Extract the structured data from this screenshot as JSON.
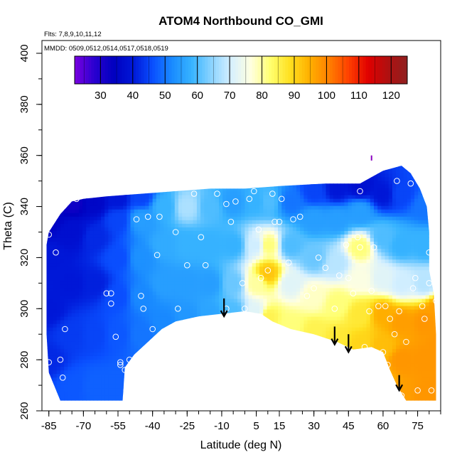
{
  "chart_data": {
    "type": "heatmap",
    "title": "ATOM4 Northbound CO_GMI",
    "flights_note": "Flts: 7,8,9,10,11,12",
    "dates_note": "MMDD: 0509,0512,0514,0517,0518,0519",
    "xlabel": "Latitude (deg N)",
    "ylabel": "Theta (C)",
    "xlim": [
      -88,
      85
    ],
    "ylim": [
      260,
      405
    ],
    "x_ticks": [
      -85,
      -70,
      -55,
      -40,
      -25,
      -10,
      5,
      15,
      30,
      45,
      60,
      75
    ],
    "y_ticks": [
      260,
      280,
      300,
      320,
      340,
      360,
      380,
      400
    ],
    "colorbar": {
      "range": [
        22,
        125
      ],
      "ticks": [
        30,
        40,
        50,
        60,
        70,
        80,
        90,
        100,
        110,
        120
      ],
      "colors": [
        "#7a00e0",
        "#2a00d0",
        "#0000c0",
        "#0018d8",
        "#0a50ff",
        "#1a8cff",
        "#38b4ff",
        "#8cd4ff",
        "#d6f0ff",
        "#ffffe0",
        "#ffff70",
        "#ffe020",
        "#ffb000",
        "#ff8000",
        "#ff4000",
        "#e00000",
        "#b01010",
        "#902020"
      ]
    },
    "top_boundary": [
      [
        -85,
        330
      ],
      [
        -80,
        337
      ],
      [
        -75,
        342
      ],
      [
        -70,
        343
      ],
      [
        -60,
        344
      ],
      [
        -45,
        345
      ],
      [
        -30,
        346
      ],
      [
        -15,
        347
      ],
      [
        0,
        347
      ],
      [
        15,
        348
      ],
      [
        35,
        349
      ],
      [
        50,
        349
      ],
      [
        60,
        354
      ],
      [
        68,
        356
      ],
      [
        72,
        353
      ],
      [
        76,
        347
      ],
      [
        79,
        340
      ],
      [
        80,
        330
      ],
      [
        80,
        315
      ],
      [
        82,
        306
      ],
      [
        83,
        290
      ]
    ],
    "bottom_boundary": [
      [
        83,
        264
      ],
      [
        78,
        264
      ],
      [
        70,
        264
      ],
      [
        66,
        270
      ],
      [
        63,
        276
      ],
      [
        60,
        283
      ],
      [
        55,
        285
      ],
      [
        47,
        284
      ],
      [
        40,
        287
      ],
      [
        30,
        290
      ],
      [
        20,
        292
      ],
      [
        12,
        295
      ],
      [
        7,
        298
      ],
      [
        0,
        299
      ],
      [
        -10,
        298
      ],
      [
        -20,
        297
      ],
      [
        -30,
        295
      ],
      [
        -36,
        292
      ],
      [
        -42,
        287
      ],
      [
        -48,
        282
      ],
      [
        -52,
        277
      ],
      [
        -53,
        264
      ],
      [
        -60,
        264
      ],
      [
        -70,
        264
      ],
      [
        -80,
        264
      ],
      [
        -85,
        275
      ],
      [
        -86,
        290
      ],
      [
        -86,
        310
      ],
      [
        -86,
        325
      ]
    ],
    "grid_points": [
      {
        "x": -85,
        "y": 280,
        "v": 42
      },
      {
        "x": -85,
        "y": 300,
        "v": 40
      },
      {
        "x": -85,
        "y": 320,
        "v": 40
      },
      {
        "x": -85,
        "y": 335,
        "v": 35
      },
      {
        "x": -75,
        "y": 270,
        "v": 47
      },
      {
        "x": -75,
        "y": 290,
        "v": 44
      },
      {
        "x": -75,
        "y": 310,
        "v": 40
      },
      {
        "x": -75,
        "y": 330,
        "v": 38
      },
      {
        "x": -75,
        "y": 342,
        "v": 32
      },
      {
        "x": -65,
        "y": 270,
        "v": 48
      },
      {
        "x": -65,
        "y": 290,
        "v": 45
      },
      {
        "x": -65,
        "y": 310,
        "v": 41
      },
      {
        "x": -65,
        "y": 328,
        "v": 42
      },
      {
        "x": -65,
        "y": 342,
        "v": 36
      },
      {
        "x": -55,
        "y": 270,
        "v": 48
      },
      {
        "x": -55,
        "y": 290,
        "v": 47
      },
      {
        "x": -55,
        "y": 305,
        "v": 46
      },
      {
        "x": -55,
        "y": 320,
        "v": 46
      },
      {
        "x": -55,
        "y": 335,
        "v": 45
      },
      {
        "x": -55,
        "y": 343,
        "v": 40
      },
      {
        "x": -45,
        "y": 290,
        "v": 50
      },
      {
        "x": -45,
        "y": 305,
        "v": 52
      },
      {
        "x": -45,
        "y": 320,
        "v": 53
      },
      {
        "x": -45,
        "y": 335,
        "v": 55
      },
      {
        "x": -45,
        "y": 344,
        "v": 45
      },
      {
        "x": -35,
        "y": 295,
        "v": 52
      },
      {
        "x": -35,
        "y": 310,
        "v": 55
      },
      {
        "x": -35,
        "y": 325,
        "v": 57
      },
      {
        "x": -35,
        "y": 340,
        "v": 58
      },
      {
        "x": -25,
        "y": 297,
        "v": 54
      },
      {
        "x": -25,
        "y": 310,
        "v": 55
      },
      {
        "x": -25,
        "y": 325,
        "v": 58
      },
      {
        "x": -25,
        "y": 340,
        "v": 67
      },
      {
        "x": -15,
        "y": 298,
        "v": 56
      },
      {
        "x": -15,
        "y": 310,
        "v": 55
      },
      {
        "x": -15,
        "y": 325,
        "v": 58
      },
      {
        "x": -15,
        "y": 340,
        "v": 60
      },
      {
        "x": -5,
        "y": 299,
        "v": 60
      },
      {
        "x": -5,
        "y": 310,
        "v": 62
      },
      {
        "x": -5,
        "y": 325,
        "v": 58
      },
      {
        "x": -5,
        "y": 342,
        "v": 55
      },
      {
        "x": 5,
        "y": 299,
        "v": 72
      },
      {
        "x": 5,
        "y": 310,
        "v": 80
      },
      {
        "x": 5,
        "y": 325,
        "v": 70
      },
      {
        "x": 5,
        "y": 342,
        "v": 58
      },
      {
        "x": 10,
        "y": 297,
        "v": 85
      },
      {
        "x": 10,
        "y": 314,
        "v": 92
      },
      {
        "x": 10,
        "y": 325,
        "v": 82
      },
      {
        "x": 10,
        "y": 342,
        "v": 60
      },
      {
        "x": 20,
        "y": 293,
        "v": 82
      },
      {
        "x": 20,
        "y": 310,
        "v": 72
      },
      {
        "x": 20,
        "y": 325,
        "v": 60
      },
      {
        "x": 20,
        "y": 342,
        "v": 50
      },
      {
        "x": 30,
        "y": 291,
        "v": 85
      },
      {
        "x": 30,
        "y": 305,
        "v": 78
      },
      {
        "x": 30,
        "y": 320,
        "v": 62
      },
      {
        "x": 30,
        "y": 335,
        "v": 55
      },
      {
        "x": 30,
        "y": 346,
        "v": 45
      },
      {
        "x": 40,
        "y": 288,
        "v": 87
      },
      {
        "x": 40,
        "y": 302,
        "v": 82
      },
      {
        "x": 40,
        "y": 318,
        "v": 68
      },
      {
        "x": 40,
        "y": 335,
        "v": 55
      },
      {
        "x": 40,
        "y": 347,
        "v": 40
      },
      {
        "x": 50,
        "y": 286,
        "v": 90
      },
      {
        "x": 50,
        "y": 298,
        "v": 87
      },
      {
        "x": 50,
        "y": 312,
        "v": 76
      },
      {
        "x": 50,
        "y": 324,
        "v": 82
      },
      {
        "x": 50,
        "y": 338,
        "v": 55
      },
      {
        "x": 50,
        "y": 348,
        "v": 38
      },
      {
        "x": 60,
        "y": 272,
        "v": 95
      },
      {
        "x": 60,
        "y": 285,
        "v": 93
      },
      {
        "x": 60,
        "y": 298,
        "v": 95
      },
      {
        "x": 60,
        "y": 312,
        "v": 72
      },
      {
        "x": 60,
        "y": 328,
        "v": 60
      },
      {
        "x": 60,
        "y": 345,
        "v": 40
      },
      {
        "x": 68,
        "y": 266,
        "v": 97
      },
      {
        "x": 68,
        "y": 280,
        "v": 98
      },
      {
        "x": 68,
        "y": 295,
        "v": 97
      },
      {
        "x": 68,
        "y": 310,
        "v": 70
      },
      {
        "x": 68,
        "y": 325,
        "v": 58
      },
      {
        "x": 68,
        "y": 345,
        "v": 45
      },
      {
        "x": 78,
        "y": 266,
        "v": 98
      },
      {
        "x": 78,
        "y": 280,
        "v": 98
      },
      {
        "x": 78,
        "y": 295,
        "v": 98
      },
      {
        "x": 78,
        "y": 310,
        "v": 68
      },
      {
        "x": 78,
        "y": 325,
        "v": 58
      },
      {
        "x": 78,
        "y": 340,
        "v": 50
      },
      {
        "x": 84,
        "y": 270,
        "v": 98
      },
      {
        "x": 84,
        "y": 285,
        "v": 98
      },
      {
        "x": 84,
        "y": 300,
        "v": 97
      }
    ],
    "obs_points": [
      [
        -85,
        279
      ],
      [
        -85,
        329
      ],
      [
        -82,
        322
      ],
      [
        -80,
        280
      ],
      [
        -79,
        273
      ],
      [
        -78,
        292
      ],
      [
        -73,
        343
      ],
      [
        -60,
        306
      ],
      [
        -58,
        302
      ],
      [
        -58,
        306
      ],
      [
        -56,
        289
      ],
      [
        -54,
        278
      ],
      [
        -54,
        279
      ],
      [
        -52,
        276
      ],
      [
        -50,
        280
      ],
      [
        -47,
        335
      ],
      [
        -45,
        305
      ],
      [
        -44,
        300
      ],
      [
        -42,
        336
      ],
      [
        -40,
        292
      ],
      [
        -38,
        321
      ],
      [
        -37,
        336
      ],
      [
        -30,
        330
      ],
      [
        -29,
        300
      ],
      [
        -25,
        317
      ],
      [
        -22,
        345
      ],
      [
        -19,
        328
      ],
      [
        -17,
        317
      ],
      [
        -12,
        345
      ],
      [
        -8,
        341
      ],
      [
        -8,
        300
      ],
      [
        -6,
        334
      ],
      [
        -4,
        342
      ],
      [
        -1,
        310
      ],
      [
        0,
        300
      ],
      [
        2,
        343
      ],
      [
        4,
        346
      ],
      [
        6,
        331
      ],
      [
        7,
        312
      ],
      [
        10,
        315
      ],
      [
        12,
        345
      ],
      [
        13,
        334
      ],
      [
        15,
        334
      ],
      [
        16,
        343
      ],
      [
        19,
        318
      ],
      [
        21,
        335
      ],
      [
        24,
        336
      ],
      [
        27,
        305
      ],
      [
        30,
        308
      ],
      [
        32,
        320
      ],
      [
        35,
        316
      ],
      [
        39,
        300
      ],
      [
        41,
        313
      ],
      [
        44,
        325
      ],
      [
        45,
        312
      ],
      [
        47,
        306
      ],
      [
        49,
        328
      ],
      [
        50,
        324
      ],
      [
        50,
        346
      ],
      [
        52,
        285
      ],
      [
        54,
        299
      ],
      [
        55,
        307
      ],
      [
        56,
        324
      ],
      [
        58,
        301
      ],
      [
        60,
        283
      ],
      [
        61,
        301
      ],
      [
        62,
        278
      ],
      [
        63,
        296
      ],
      [
        65,
        290
      ],
      [
        67,
        299
      ],
      [
        66,
        350
      ],
      [
        68,
        266
      ],
      [
        70,
        287
      ],
      [
        72,
        349
      ],
      [
        73,
        308
      ],
      [
        74,
        312
      ],
      [
        75,
        268
      ],
      [
        77,
        301
      ],
      [
        78,
        296
      ],
      [
        80,
        322
      ],
      [
        80,
        310
      ],
      [
        81,
        268
      ],
      [
        83,
        303
      ]
    ],
    "arrows": [
      {
        "x": -9,
        "y_top": 304,
        "y_bottom": 297
      },
      {
        "x": 39,
        "y_top": 293,
        "y_bottom": 286
      },
      {
        "x": 45,
        "y_top": 290,
        "y_bottom": 283
      },
      {
        "x": 67,
        "y_top": 274,
        "y_bottom": 268
      }
    ],
    "spike": {
      "x": 55,
      "y_bottom": 358,
      "y_top": 360
    }
  }
}
